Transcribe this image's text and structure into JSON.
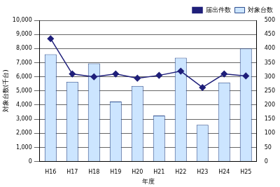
{
  "chart_data": {
    "type": "bar",
    "x_label": "年度",
    "y_label": "対象台数(千台)",
    "categories": [
      "H16",
      "H17",
      "H18",
      "H19",
      "H20",
      "H21",
      "H22",
      "H23",
      "H24",
      "H25"
    ],
    "series": [
      {
        "name": "対象台数",
        "type": "bar",
        "color": "#cce5ff",
        "values": [
          7600,
          5650,
          6950,
          4250,
          5350,
          3250,
          7350,
          2600,
          5600,
          8000
        ]
      },
      {
        "name": "届出件数",
        "type": "line",
        "axis": "y2",
        "color": "#1f1f7a",
        "marker": "diamond",
        "line_style": "solid",
        "values": [
          435,
          310,
          300,
          310,
          295,
          305,
          320,
          262,
          310,
          303
        ]
      }
    ],
    "ylim": [
      0,
      10000
    ],
    "yticks": [
      {
        "value": 0,
        "label": "0"
      },
      {
        "value": 1000,
        "label": "1,000"
      },
      {
        "value": 2000,
        "label": "2,000"
      },
      {
        "value": 3000,
        "label": "3,000"
      },
      {
        "value": 4000,
        "label": "4,000"
      },
      {
        "value": 5000,
        "label": "5,000"
      },
      {
        "value": 6000,
        "label": "6,000"
      },
      {
        "value": 7000,
        "label": "7,000"
      },
      {
        "value": 8000,
        "label": "8,000"
      },
      {
        "value": 9000,
        "label": "9,000"
      },
      {
        "value": 10000,
        "label": "10,000"
      }
    ],
    "y2lim": [
      0,
      500
    ],
    "y2ticks": [
      0,
      50,
      100,
      150,
      200,
      250,
      300,
      350,
      400,
      450,
      500
    ],
    "grid": true,
    "legend": "upper right"
  }
}
